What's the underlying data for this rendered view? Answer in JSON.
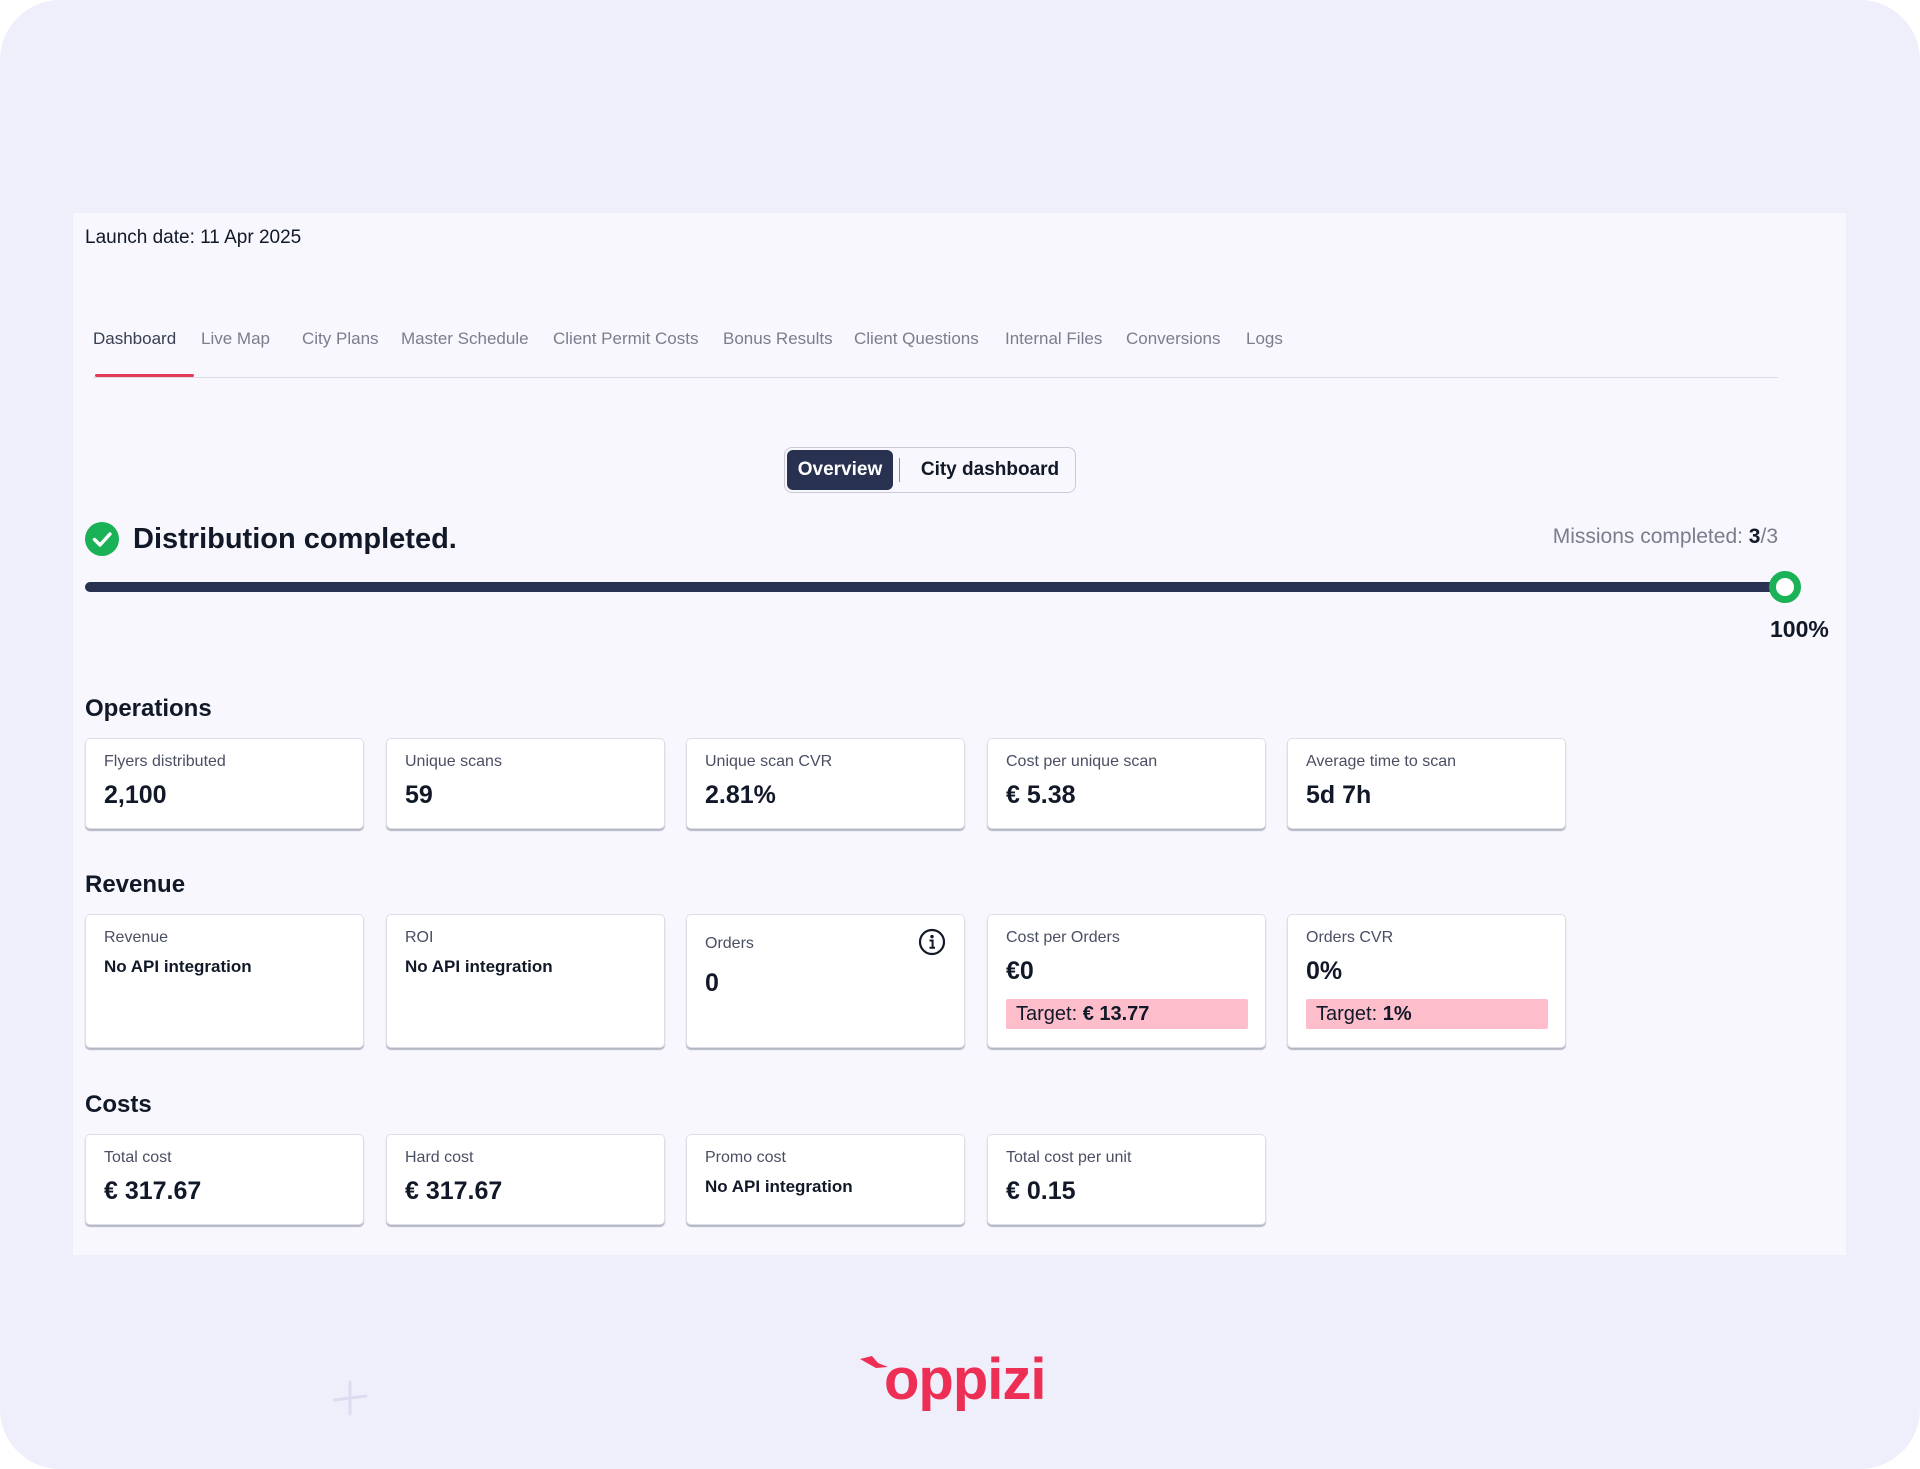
{
  "header": {
    "launch_date": "Launch date: 11 Apr 2025"
  },
  "tabs": [
    {
      "label": "Dashboard",
      "active": true
    },
    {
      "label": "Live Map"
    },
    {
      "label": "City Plans"
    },
    {
      "label": "Master Schedule"
    },
    {
      "label": "Client Permit Costs"
    },
    {
      "label": "Bonus Results"
    },
    {
      "label": "Client Questions"
    },
    {
      "label": "Internal Files"
    },
    {
      "label": "Conversions"
    },
    {
      "label": "Logs"
    }
  ],
  "view_toggle": {
    "overview": "Overview",
    "city_dashboard": "City dashboard",
    "selected": "Overview"
  },
  "status": {
    "text": "Distribution completed.",
    "missions_label": "Missions completed: ",
    "missions_done": "3",
    "missions_total": "/3",
    "progress_percent": 100,
    "progress_label": "100%",
    "icon": "check-circle-icon",
    "color": "#1bb156"
  },
  "operations": {
    "title": "Operations",
    "cards": [
      {
        "label": "Flyers distributed",
        "value": "2,100"
      },
      {
        "label": "Unique scans",
        "value": "59"
      },
      {
        "label": "Unique scan CVR",
        "value": "2.81%"
      },
      {
        "label": "Cost per unique scan",
        "value": "€ 5.38"
      },
      {
        "label": "Average time to scan",
        "value": "5d 7h"
      }
    ]
  },
  "revenue": {
    "title": "Revenue",
    "cards": [
      {
        "label": "Revenue",
        "note": "No API integration"
      },
      {
        "label": "ROI",
        "note": "No API integration"
      },
      {
        "label": "Orders",
        "value": "0",
        "icon": "info-icon"
      },
      {
        "label": "Cost per Orders",
        "value": "€0",
        "target_label": "Target: ",
        "target_value": "€ 13.77"
      },
      {
        "label": "Orders CVR",
        "value": "0%",
        "target_label": "Target: ",
        "target_value": "1%"
      }
    ]
  },
  "costs": {
    "title": "Costs",
    "cards": [
      {
        "label": "Total cost",
        "value": "€ 317.67"
      },
      {
        "label": "Hard cost",
        "value": "€ 317.67"
      },
      {
        "label": "Promo cost",
        "note": "No API integration"
      },
      {
        "label": "Total cost per unit",
        "value": "€ 0.15"
      }
    ]
  },
  "brand": {
    "logo_text": "oppizi",
    "color": "#ee2f55"
  },
  "colors": {
    "accent": "#e53958",
    "toggle_active": "#283150",
    "target_bg": "#fdbdcb",
    "background": "#efeffb"
  }
}
